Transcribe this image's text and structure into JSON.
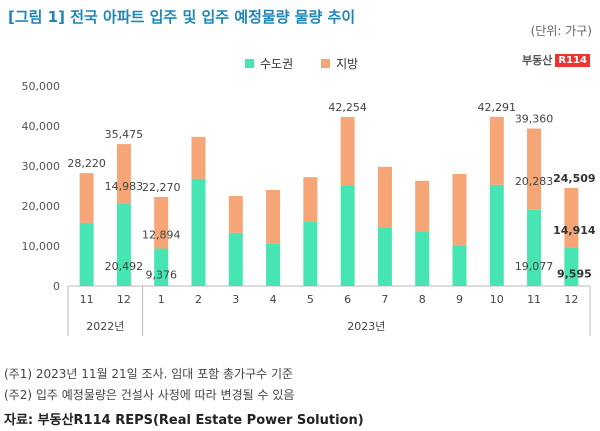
{
  "title": "[그림 1] 전국 아파트 입주 및 입주 예정물량 물량 추이",
  "unit": "(단위: 가구)",
  "logo_text": "부동산R114",
  "logo_badge": "R114",
  "notes": [
    "(주1) 2023년 11월 21일 조사. 임대 포함 총가구수 기준",
    "(주2) 입주 예정물량은 건설사 사정에 따라 변경될 수 있음"
  ],
  "source": "자료: 부동산R114 REPS(Real Estate Power Solution)",
  "colors": {
    "metro": "#48e5b4",
    "local": "#f6a577"
  },
  "chart_data": {
    "type": "bar",
    "stacked": true,
    "title": "전국 아파트 입주 및 입주 예정물량 물량 추이",
    "ylim": [
      0,
      50000
    ],
    "yticks": [
      "0",
      "10,000",
      "20,000",
      "30,000",
      "40,000",
      "50,000"
    ],
    "categories": [
      "11",
      "12",
      "1",
      "2",
      "3",
      "4",
      "5",
      "6",
      "7",
      "8",
      "9",
      "10",
      "11",
      "12"
    ],
    "year_groups": [
      {
        "label": "2022년",
        "count": 2
      },
      {
        "label": "2023년",
        "count": 12
      }
    ],
    "series": [
      {
        "name": "수도권",
        "values": [
          15800,
          20492,
          9376,
          26800,
          13300,
          10600,
          16000,
          25000,
          14600,
          13500,
          10000,
          25300,
          19077,
          9595
        ]
      },
      {
        "name": "지방",
        "values": [
          12420,
          14983,
          12894,
          10500,
          9200,
          13400,
          11200,
          17254,
          15200,
          12800,
          18000,
          16991,
          20283,
          14914
        ]
      }
    ],
    "labels": [
      {
        "i": 0,
        "total": "28,220"
      },
      {
        "i": 1,
        "total": "35,475",
        "metro": "20,492",
        "local": "14,983"
      },
      {
        "i": 2,
        "total": "22,270",
        "metro": "9,376",
        "local": "12,894"
      },
      {
        "i": 7,
        "total": "42,254"
      },
      {
        "i": 11,
        "total": "42,291"
      },
      {
        "i": 12,
        "total": "39,360",
        "metro": "19,077",
        "local": "20,283"
      },
      {
        "i": 13,
        "total": "24,509",
        "metro": "9,595",
        "local": "14,914",
        "bold": true
      }
    ],
    "legend": [
      "수도권",
      "지방"
    ]
  }
}
